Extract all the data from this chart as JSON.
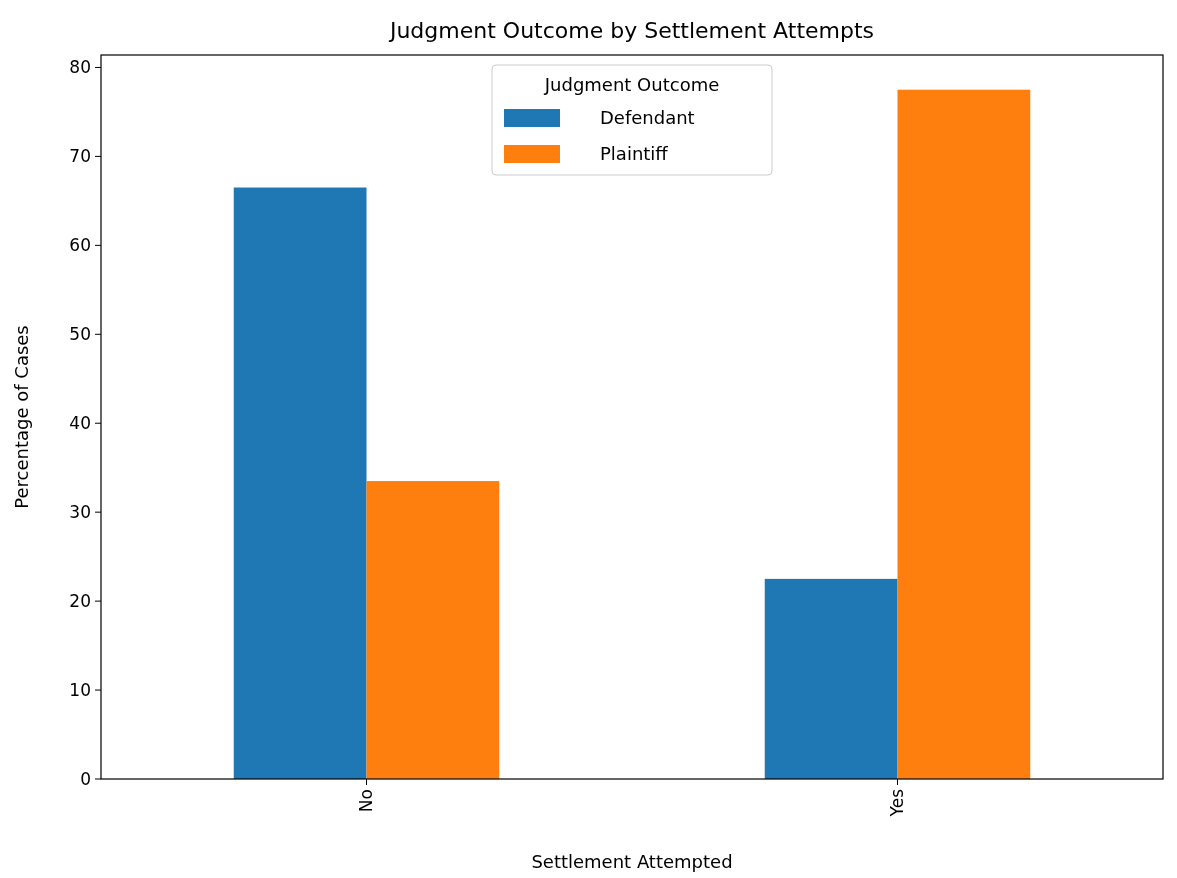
{
  "chart_data": {
    "type": "bar",
    "title": "Judgment Outcome by Settlement Attempts",
    "xlabel": "Settlement Attempted",
    "ylabel": "Percentage of Cases",
    "legend_title": "Judgment Outcome",
    "categories": [
      "No",
      "Yes"
    ],
    "series": [
      {
        "name": "Defendant",
        "color": "#1f77b4",
        "values": [
          66.5,
          22.5
        ]
      },
      {
        "name": "Plaintiff",
        "color": "#ff7f0e",
        "values": [
          33.5,
          77.5
        ]
      }
    ],
    "ylim": [
      0,
      81.4
    ],
    "yticks": [
      0,
      10,
      20,
      30,
      40,
      50,
      60,
      70,
      80
    ],
    "grid": false,
    "legend": "top"
  }
}
